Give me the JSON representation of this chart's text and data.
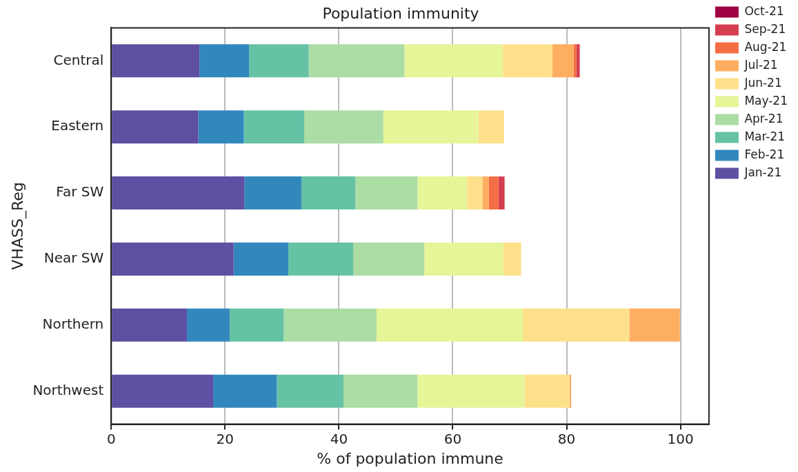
{
  "chart_data": {
    "type": "bar",
    "title": "Population immunity",
    "xlabel": "% of population immune",
    "ylabel": "VHASS_Reg",
    "orientation": "horizontal",
    "stacked": true,
    "grid": "x",
    "legend": "right",
    "categories": [
      "Central",
      "Eastern",
      "Far SW",
      "Near SW",
      "Northern",
      "Northwest"
    ],
    "xlim": [
      0,
      105
    ],
    "xticks": [
      0,
      20,
      40,
      60,
      80,
      100
    ],
    "series": [
      {
        "name": "Jan-21",
        "color": "#5e4fa2",
        "values": [
          15.5,
          15.3,
          23.4,
          21.5,
          13.3,
          17.9
        ]
      },
      {
        "name": "Feb-21",
        "color": "#3288bd",
        "values": [
          8.7,
          8.0,
          10.0,
          9.6,
          7.5,
          11.2
        ]
      },
      {
        "name": "Mar-21",
        "color": "#66c2a5",
        "values": [
          10.5,
          10.6,
          9.5,
          11.4,
          9.5,
          11.7
        ]
      },
      {
        "name": "Apr-21",
        "color": "#abdda4",
        "values": [
          16.8,
          13.9,
          10.9,
          12.5,
          16.3,
          13.0
        ]
      },
      {
        "name": "May-21",
        "color": "#e6f598",
        "values": [
          17.3,
          16.7,
          8.7,
          13.9,
          25.7,
          18.8
        ]
      },
      {
        "name": "Jun-21",
        "color": "#fee08b",
        "values": [
          8.7,
          4.5,
          2.7,
          3.1,
          18.7,
          7.9
        ]
      },
      {
        "name": "Jul-21",
        "color": "#fdae61",
        "values": [
          3.7,
          null,
          1.1,
          null,
          8.9,
          0.3
        ]
      },
      {
        "name": "Aug-21",
        "color": "#f46d43",
        "values": [
          0.5,
          null,
          1.7,
          null,
          null,
          null
        ]
      },
      {
        "name": "Sep-21",
        "color": "#d53e4f",
        "values": [
          0.6,
          null,
          1.1,
          null,
          null,
          null
        ]
      },
      {
        "name": "Oct-21",
        "color": "#9e0142",
        "values": [
          null,
          null,
          null,
          null,
          null,
          null
        ]
      }
    ]
  }
}
